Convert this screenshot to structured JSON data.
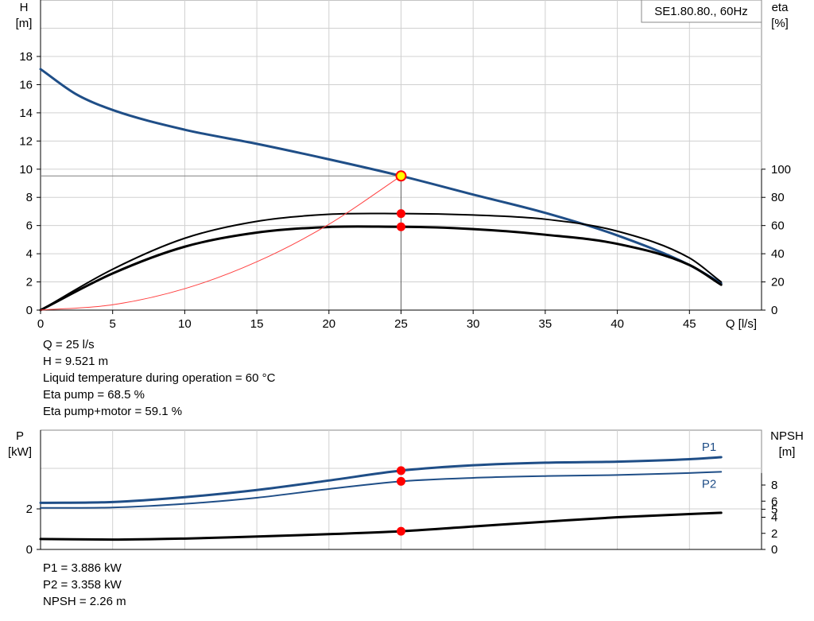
{
  "chart_data": [
    {
      "type": "line",
      "title": "",
      "legend_box": "SE1.80.80., 60Hz",
      "xlabel": "Q [l/s]",
      "ylabel_left": [
        "H",
        "[m]"
      ],
      "ylabel_right": [
        "eta",
        "[%]"
      ],
      "xlim": [
        0,
        50
      ],
      "ylim_left": [
        0,
        20
      ],
      "ylim_right": [
        0,
        100
      ],
      "x_ticks": [
        0,
        5,
        10,
        15,
        20,
        25,
        30,
        35,
        40,
        45
      ],
      "y_ticks_left": [
        0,
        2,
        4,
        6,
        8,
        10,
        12,
        14,
        16,
        18
      ],
      "y_ticks_right": [
        0,
        20,
        40,
        60,
        80,
        100
      ],
      "grid": true,
      "series": [
        {
          "key": "H",
          "axis": "left",
          "color": "#1f4e87",
          "points": [
            [
              0,
              17.1
            ],
            [
              2.5,
              15.3
            ],
            [
              5,
              14.2
            ],
            [
              10,
              12.8
            ],
            [
              15,
              11.8
            ],
            [
              20,
              10.7
            ],
            [
              25,
              9.52
            ],
            [
              30,
              8.2
            ],
            [
              35,
              6.9
            ],
            [
              40,
              5.3
            ],
            [
              45,
              3.2
            ],
            [
              47.2,
              1.9
            ]
          ]
        },
        {
          "key": "eta_pump",
          "axis": "right",
          "color": "#000000",
          "points": [
            [
              0,
              0
            ],
            [
              5,
              29
            ],
            [
              10,
              51
            ],
            [
              15,
              63
            ],
            [
              20,
              68
            ],
            [
              25,
              68.5
            ],
            [
              30,
              67.5
            ],
            [
              35,
              64.5
            ],
            [
              40,
              56
            ],
            [
              45,
              37
            ],
            [
              47.2,
              20
            ]
          ]
        },
        {
          "key": "eta_pump_motor",
          "axis": "right",
          "color": "#000000",
          "points": [
            [
              0,
              0
            ],
            [
              5,
              26
            ],
            [
              10,
              45
            ],
            [
              15,
              55
            ],
            [
              20,
              59
            ],
            [
              25,
              59.1
            ],
            [
              30,
              57.5
            ],
            [
              35,
              53.5
            ],
            [
              40,
              47
            ],
            [
              45,
              32
            ],
            [
              47.2,
              18
            ]
          ]
        },
        {
          "key": "system_curve",
          "axis": "left",
          "color": "#ff4040",
          "points": [
            [
              0,
              0
            ],
            [
              5,
              0.38
            ],
            [
              10,
              1.52
            ],
            [
              15,
              3.43
            ],
            [
              20,
              6.09
            ],
            [
              25,
              9.52
            ]
          ]
        }
      ],
      "duty_point": {
        "Q": 25,
        "H": 9.521,
        "eta_pump": 68.5,
        "eta_pump_motor": 59.1
      }
    },
    {
      "type": "line",
      "title": "",
      "ylabel_left": [
        "P",
        "[kW]"
      ],
      "ylabel_right": [
        "NPSH",
        "[m]"
      ],
      "xlim": [
        0,
        50
      ],
      "ylim_left": [
        0,
        5.9
      ],
      "ylim_right": [
        0,
        20
      ],
      "y_ticks_left": [
        0,
        2
      ],
      "y_ticks_right": [
        0,
        2,
        4,
        5,
        6,
        8
      ],
      "grid": true,
      "series": [
        {
          "name": "P1",
          "axis": "left",
          "color": "#1f4e87",
          "points": [
            [
              0,
              2.3
            ],
            [
              5,
              2.34
            ],
            [
              10,
              2.58
            ],
            [
              15,
              2.93
            ],
            [
              20,
              3.4
            ],
            [
              25,
              3.886
            ],
            [
              30,
              4.15
            ],
            [
              35,
              4.28
            ],
            [
              40,
              4.33
            ],
            [
              45,
              4.45
            ],
            [
              47.2,
              4.55
            ]
          ]
        },
        {
          "name": "P2",
          "axis": "left",
          "color": "#1f4e87",
          "points": [
            [
              0,
              2.05
            ],
            [
              5,
              2.07
            ],
            [
              10,
              2.25
            ],
            [
              15,
              2.55
            ],
            [
              20,
              2.98
            ],
            [
              25,
              3.358
            ],
            [
              30,
              3.53
            ],
            [
              35,
              3.62
            ],
            [
              40,
              3.67
            ],
            [
              45,
              3.77
            ],
            [
              47.2,
              3.83
            ]
          ]
        },
        {
          "key": "NPSH",
          "axis": "right",
          "color": "#000000",
          "points": [
            [
              0,
              1.3
            ],
            [
              5,
              1.22
            ],
            [
              10,
              1.35
            ],
            [
              15,
              1.6
            ],
            [
              20,
              1.9
            ],
            [
              25,
              2.26
            ],
            [
              30,
              2.85
            ],
            [
              35,
              3.45
            ],
            [
              40,
              4.0
            ],
            [
              45,
              4.4
            ],
            [
              47.2,
              4.55
            ]
          ]
        }
      ],
      "duty_point": {
        "Q": 25,
        "P1": 3.886,
        "P2": 3.358,
        "NPSH": 2.26
      }
    }
  ],
  "info_top": [
    "Q = 25 l/s",
    "H = 9.521 m",
    "Liquid temperature during operation = 60 °C",
    "Eta pump = 68.5 %",
    "Eta pump+motor = 59.1 %"
  ],
  "info_bottom": [
    "P1 = 3.886 kW",
    "P2 = 3.358 kW",
    "NPSH = 2.26 m"
  ]
}
